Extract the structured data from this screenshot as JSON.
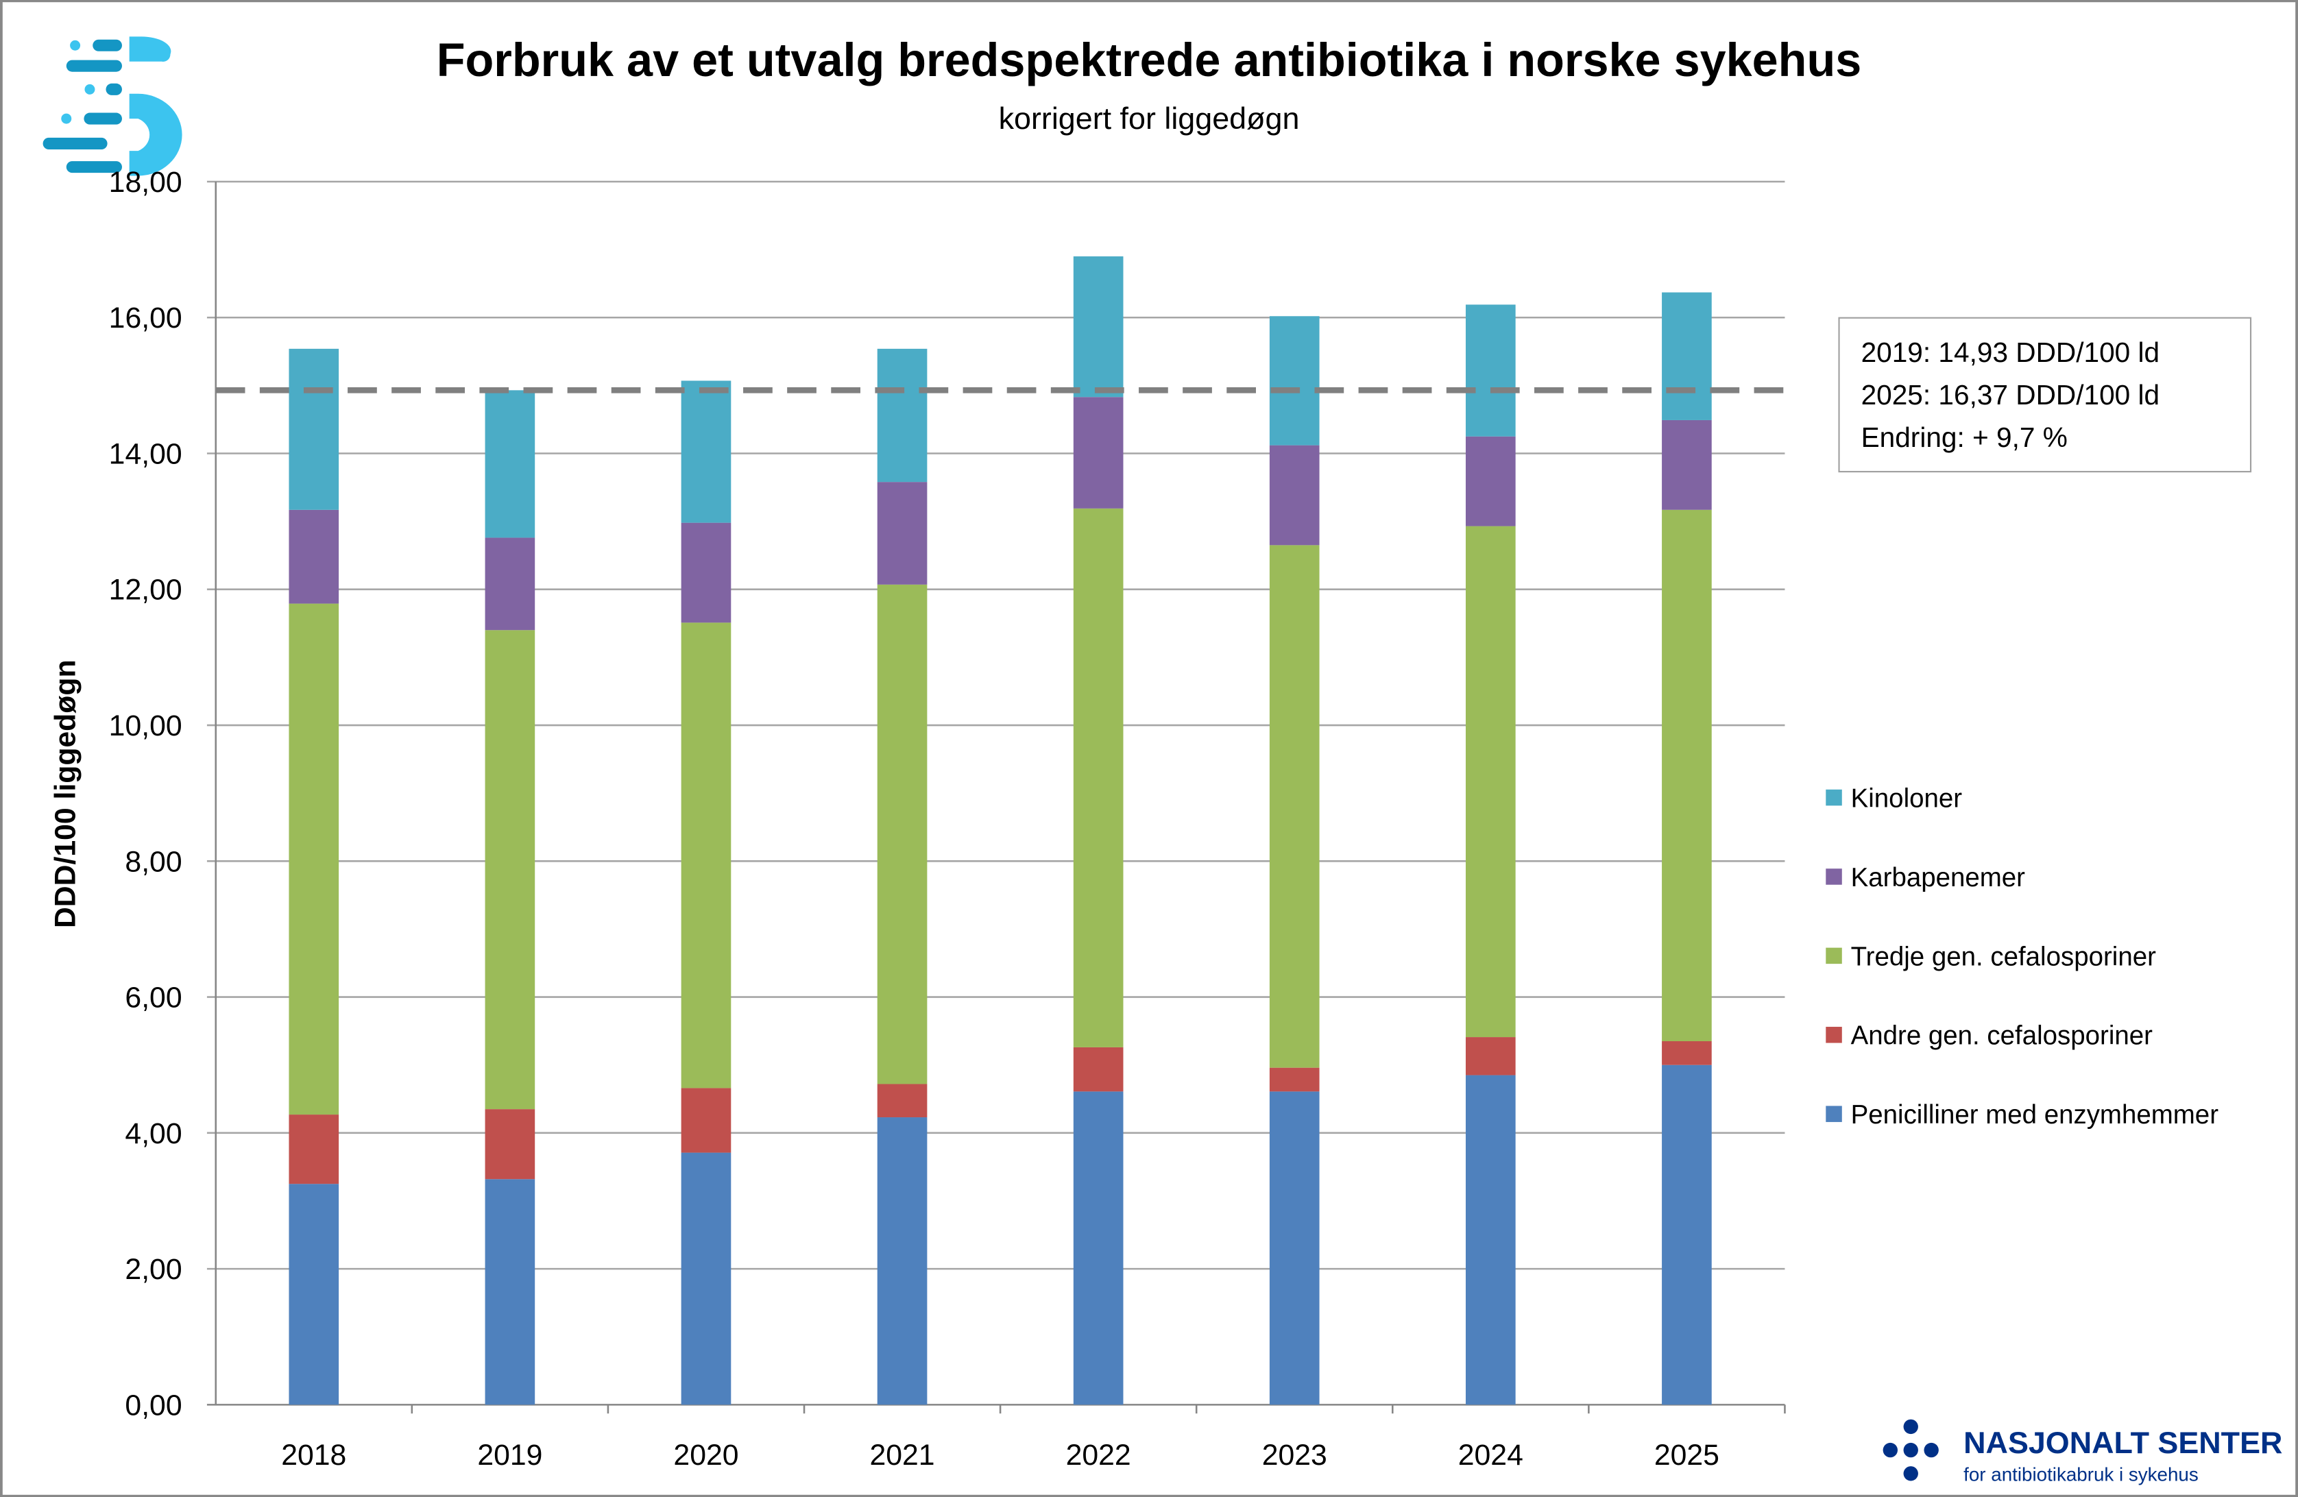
{
  "chart_data": {
    "type": "bar",
    "stacked": true,
    "title": "Forbruk av et utvalg bredspektrede antibiotika i norske sykehus",
    "subtitle": "korrigert for liggedøgn",
    "xlabel": "",
    "ylabel": "DDD/100 liggedøgn",
    "ylim": [
      0,
      18
    ],
    "yticks": [
      "0,00",
      "2,00",
      "4,00",
      "6,00",
      "8,00",
      "10,00",
      "12,00",
      "14,00",
      "16,00",
      "18,00"
    ],
    "grid": true,
    "legend_position": "right",
    "categories": [
      "2018",
      "2019",
      "2020",
      "2021",
      "2022",
      "2023",
      "2024",
      "2025"
    ],
    "series": [
      {
        "name": "Penicilliner med enzymhemmer",
        "color": "#4f81bd",
        "values": [
          3.25,
          3.32,
          3.71,
          4.23,
          4.61,
          4.61,
          4.85,
          5.0
        ]
      },
      {
        "name": "Andre gen. cefalosporiner",
        "color": "#c0504d",
        "values": [
          1.02,
          1.03,
          0.95,
          0.49,
          0.65,
          0.35,
          0.56,
          0.35
        ]
      },
      {
        "name": "Tredje gen. cefalosporiner",
        "color": "#9bbb59",
        "values": [
          7.52,
          7.05,
          6.85,
          7.35,
          7.93,
          7.69,
          7.52,
          7.82
        ]
      },
      {
        "name": "Karbapenemer",
        "color": "#8064a2",
        "values": [
          1.38,
          1.36,
          1.47,
          1.51,
          1.64,
          1.47,
          1.32,
          1.32
        ]
      },
      {
        "name": "Kinoloner",
        "color": "#4bacc6",
        "values": [
          2.37,
          2.17,
          2.09,
          1.96,
          2.07,
          1.9,
          1.94,
          1.88
        ]
      }
    ],
    "reference_line": {
      "value": 14.93,
      "style": "dashed",
      "color": "#808080"
    },
    "annotation": [
      "2019: 14,93 DDD/100 ld",
      "2025: 16,37 DDD/100 ld",
      "Endring: + 9,7 %"
    ]
  },
  "logos": {
    "top_left": "nasjonalt-senter-s-logo",
    "bottom_right_title": "NASJONALT SENTER",
    "bottom_right_subtitle": "for antibiotikabruk i sykehus",
    "brand_color": "#003087"
  }
}
